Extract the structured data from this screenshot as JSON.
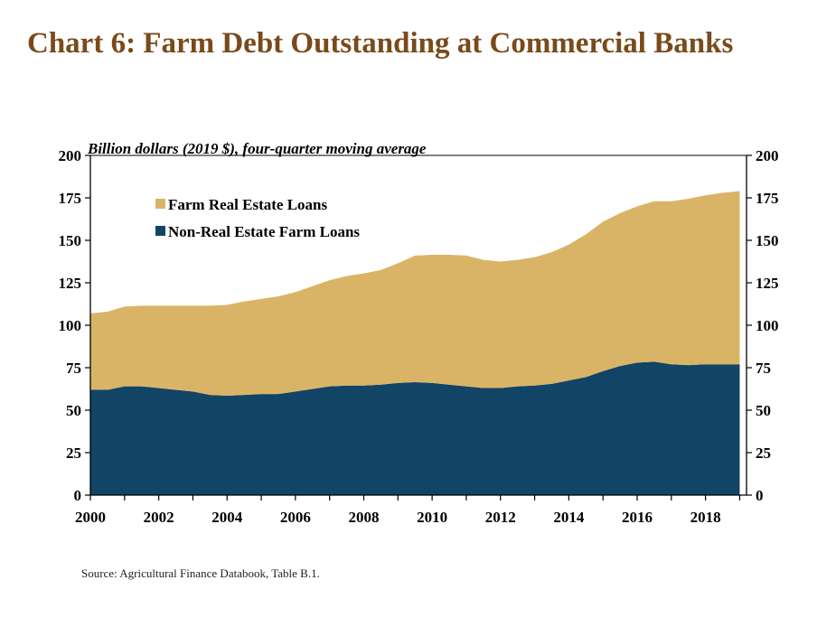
{
  "title": "Chart 6: Farm Debt Outstanding at Commercial Banks",
  "source": "Source: Agricultural Finance Databook, Table B.1.",
  "chart_data": {
    "type": "area",
    "stacked": true,
    "subtitle": "Billion dollars (2019 $), four-quarter moving average",
    "x": [
      2000,
      2000.5,
      2001,
      2001.5,
      2002,
      2002.5,
      2003,
      2003.5,
      2004,
      2004.5,
      2005,
      2005.5,
      2006,
      2006.5,
      2007,
      2007.5,
      2008,
      2008.5,
      2009,
      2009.5,
      2010,
      2010.5,
      2011,
      2011.5,
      2012,
      2012.5,
      2013,
      2013.5,
      2014,
      2014.5,
      2015,
      2015.5,
      2016,
      2016.5,
      2017,
      2017.5,
      2018,
      2018.5,
      2019
    ],
    "xlim": [
      2000,
      2019.2
    ],
    "xticks": [
      "2000",
      "2002",
      "2004",
      "2006",
      "2008",
      "2010",
      "2012",
      "2014",
      "2016",
      "2018"
    ],
    "ylim": [
      0,
      200
    ],
    "yticks": [
      "0",
      "25",
      "50",
      "75",
      "100",
      "125",
      "150",
      "175",
      "200"
    ],
    "series": [
      {
        "name": "Non-Real Estate Farm Loans",
        "color": "#124466",
        "values": [
          62,
          62,
          64,
          64,
          63,
          62,
          61,
          59,
          58.5,
          59,
          59.5,
          59.5,
          61,
          62.5,
          64,
          64.5,
          64.5,
          65,
          66,
          66.5,
          66,
          65,
          64,
          63,
          63,
          64,
          64.5,
          65.5,
          67.5,
          69.5,
          73,
          76,
          78,
          78.5,
          77,
          76.5,
          77,
          77,
          77
        ]
      },
      {
        "name": "Farm Real Estate Loans",
        "color": "#dab466",
        "values": [
          45,
          46,
          47,
          47.5,
          48.5,
          49.5,
          50.5,
          52.5,
          53.5,
          55,
          56,
          57.5,
          58.5,
          60.5,
          62.5,
          64.5,
          66,
          67.5,
          70.5,
          74.5,
          75.5,
          76.5,
          77,
          75.5,
          74.5,
          74.5,
          75.5,
          77.5,
          80,
          84,
          88,
          90,
          92,
          94.5,
          96,
          98,
          99.5,
          101,
          102
        ]
      }
    ],
    "legend_position": "top-left",
    "axes_color": "#000000"
  }
}
